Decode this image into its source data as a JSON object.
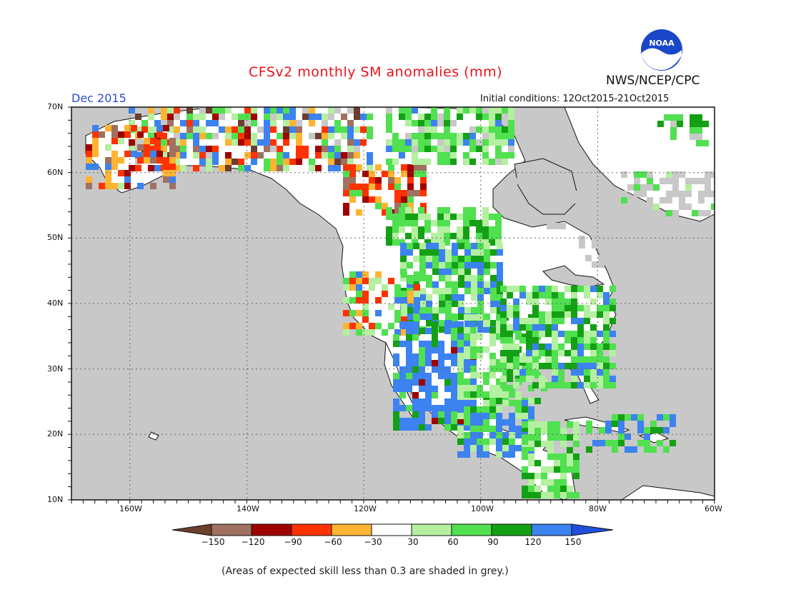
{
  "title": "CFSv2 monthly SM anomalies (mm)",
  "organization": "NWS/NCEP/CPC",
  "logo_text": "NOAA",
  "month": "Dec 2015",
  "initial_conditions": "Initial conditions: 12Oct2015-21Oct2015",
  "footnote": "(Areas of expected skill less than 0.3 are shaded in grey.)",
  "colors": {
    "ocean": "#c8c8c8",
    "land": "#ffffff",
    "low_skill": "#c8c8c8",
    "scale": [
      "#6b3e2e",
      "#a07060",
      "#a00000",
      "#ff3200",
      "#ffb432",
      "#ffffff",
      "#b4f0a0",
      "#50e050",
      "#14a014",
      "#3c82f0",
      "#1e50dc"
    ]
  },
  "lat_labels": [
    "70N",
    "60N",
    "50N",
    "40N",
    "30N",
    "20N",
    "10N"
  ],
  "lon_labels": [
    "160W",
    "140W",
    "120W",
    "100W",
    "80W",
    "60W"
  ],
  "colorbar_labels": [
    "−150",
    "−120",
    "−90",
    "−60",
    "−30",
    "30",
    "60",
    "90",
    "120",
    "150"
  ]
}
